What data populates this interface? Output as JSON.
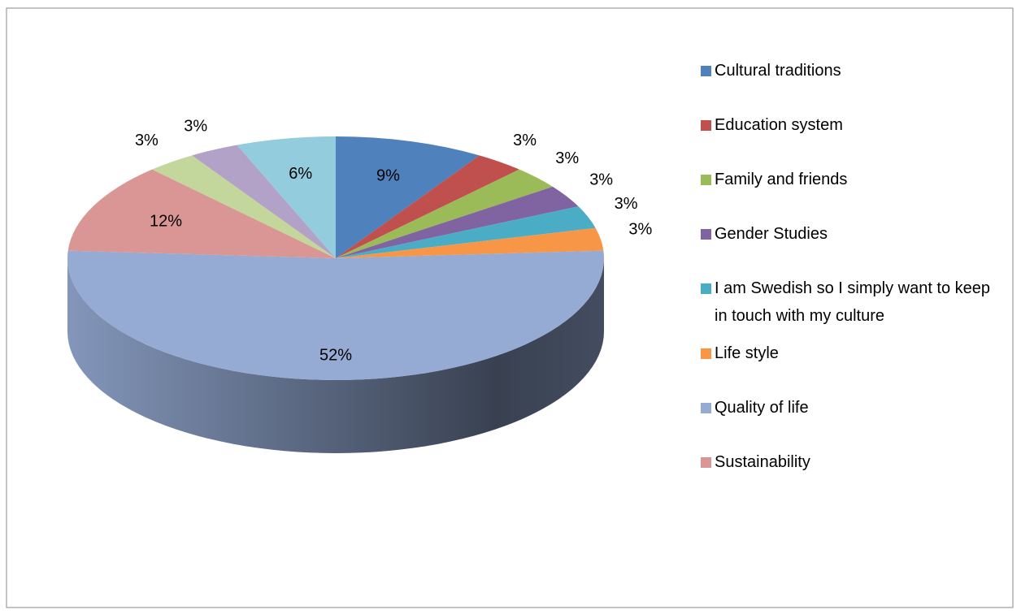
{
  "chart_data": {
    "type": "pie",
    "categories": [
      "Cultural traditions",
      "Education system",
      "Family and friends",
      "Gender Studies",
      "I am Swedish so I simply want to keep in touch with my culture",
      "Life style",
      "Quality of life",
      "Sustainability",
      null,
      null,
      null
    ],
    "values": [
      9,
      3,
      3,
      3,
      3,
      3,
      52,
      12,
      3,
      3,
      6
    ],
    "value_labels": [
      "9%",
      "3%",
      "3%",
      "3%",
      "3%",
      "3%",
      "52%",
      "12%",
      "3%",
      "3%",
      "6%"
    ],
    "colors": [
      "#4f81bd",
      "#c0504d",
      "#9bbb59",
      "#8064a2",
      "#4bacc6",
      "#f79646",
      "#95abd4",
      "#d99694",
      "#c3d69b",
      "#b3a2c7",
      "#93cddd"
    ],
    "legend": "right"
  }
}
